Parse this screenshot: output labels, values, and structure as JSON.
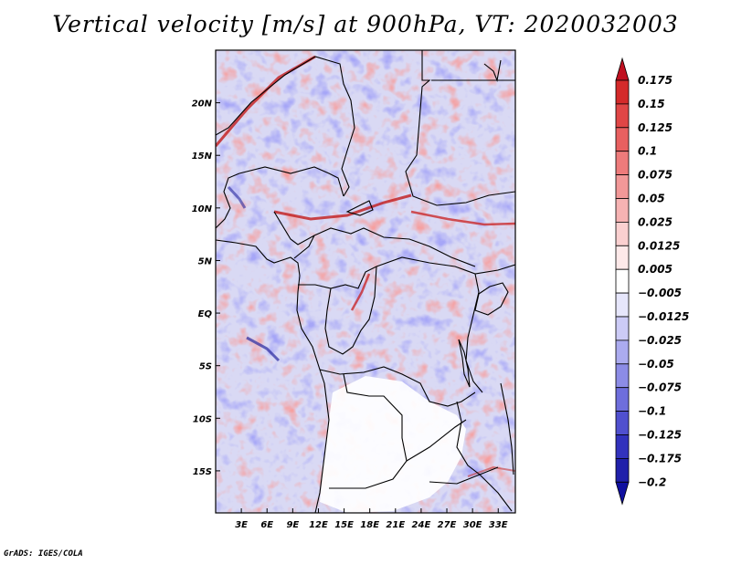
{
  "title": "Vertical velocity [m/s] at 900hPa, VT: 2020032003",
  "credit": "GrADS: IGES/COLA",
  "map": {
    "lat_labels": [
      "20N",
      "15N",
      "10N",
      "5N",
      "EQ",
      "5S",
      "10S",
      "15S"
    ],
    "lon_labels": [
      "3E",
      "6E",
      "9E",
      "12E",
      "15E",
      "18E",
      "21E",
      "24E",
      "27E",
      "30E",
      "33E"
    ],
    "lon_range": [
      0,
      35
    ],
    "lat_range": [
      -19,
      25
    ]
  },
  "colorbar": {
    "levels": [
      "0.175",
      "0.15",
      "0.125",
      "0.1",
      "0.075",
      "0.05",
      "0.025",
      "0.0125",
      "0.005",
      "-0.005",
      "-0.0125",
      "-0.025",
      "-0.05",
      "-0.075",
      "-0.1",
      "-0.125",
      "-0.175",
      "-0.2"
    ],
    "colors": [
      "#c01020",
      "#d42a2a",
      "#e04646",
      "#e86060",
      "#ee7b7b",
      "#f29898",
      "#f6b3b3",
      "#fad0d0",
      "#fde9e9",
      "#ffffff",
      "#e6e6fb",
      "#cccbf6",
      "#ababef",
      "#8c8ce6",
      "#6e6edc",
      "#5050cf",
      "#3232bd",
      "#2020aa",
      "#1010a0"
    ]
  }
}
